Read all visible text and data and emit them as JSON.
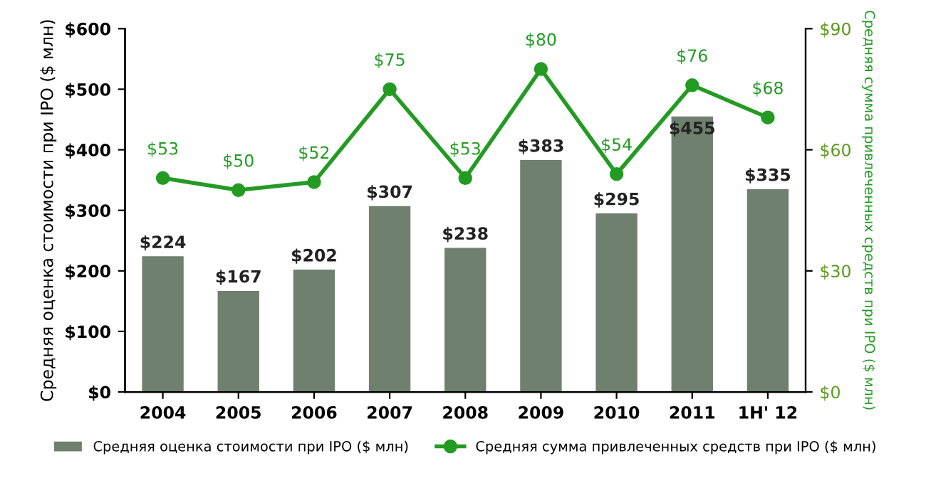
{
  "chart_data": {
    "type": "bar",
    "categories": [
      "2004",
      "2005",
      "2006",
      "2007",
      "2008",
      "2009",
      "2010",
      "2011",
      "1H' 12"
    ],
    "ylabel": "Средняя оценка стоимости при IPO ($ млн)",
    "y2label": "Средняя сумма привлеченных средств при IPO ($ млн)",
    "series": [
      {
        "name": "Средняя оценка стоимости при IPO ($ млн)",
        "color": "#6f806f",
        "values": [
          224,
          167,
          202,
          307,
          238,
          383,
          295,
          455,
          335
        ],
        "value_labels": [
          "$224",
          "$167",
          "$202",
          "$307",
          "$238",
          "$383",
          "$295",
          "$455",
          "$335"
        ]
      },
      {
        "name": "Средняя сумма привлеченных средств при IPO ($ млн)",
        "type": "line",
        "axis": "y2",
        "color": "#239b23",
        "values": [
          53,
          50,
          52,
          75,
          53,
          80,
          54,
          76,
          68
        ],
        "value_labels": [
          "$53",
          "$50",
          "$52",
          "$75",
          "$53",
          "$80",
          "$54",
          "$76",
          "$68"
        ]
      }
    ],
    "ylim": [
      0,
      600
    ],
    "yticks": [
      {
        "value": 0,
        "label": "$0"
      },
      {
        "value": 100,
        "label": "$100"
      },
      {
        "value": 200,
        "label": "$200"
      },
      {
        "value": 300,
        "label": "$300"
      },
      {
        "value": 400,
        "label": "$400"
      },
      {
        "value": 500,
        "label": "$500"
      },
      {
        "value": 600,
        "label": "$600"
      }
    ],
    "y2lim": [
      0,
      90
    ],
    "y2ticks": [
      {
        "value": 0,
        "label": "$0"
      },
      {
        "value": 30,
        "label": "$30"
      },
      {
        "value": 60,
        "label": "$60"
      },
      {
        "value": 90,
        "label": "$90"
      }
    ],
    "marker": "circle",
    "legend": "bottom",
    "grid": false
  }
}
